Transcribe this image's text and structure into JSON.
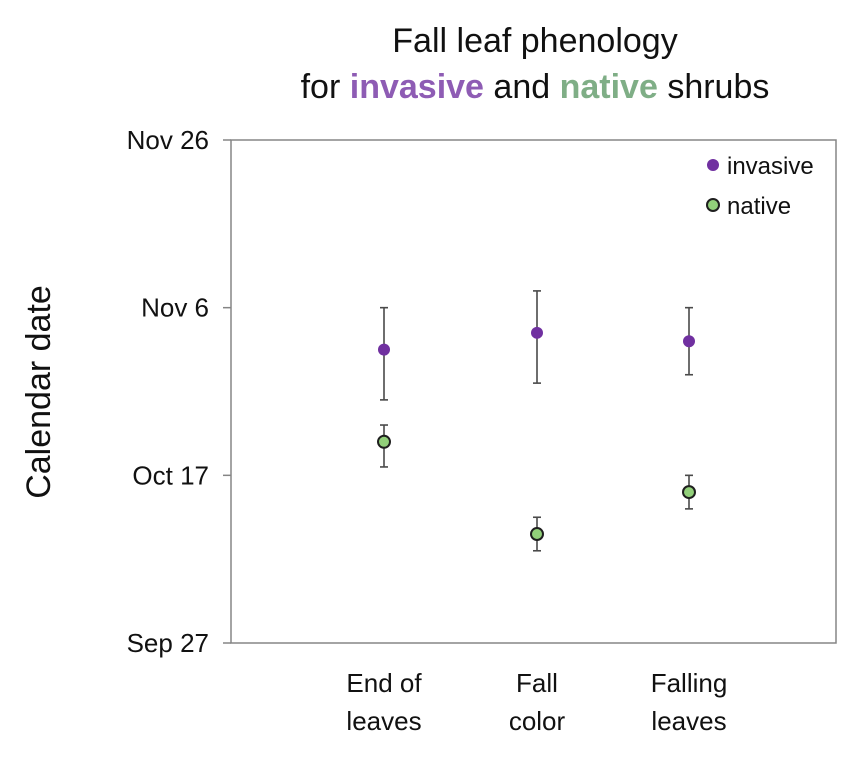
{
  "chart_data": {
    "type": "scatter",
    "title_line1": "Fall leaf phenology",
    "title_line2": {
      "prefix": "for",
      "invasive_word": "invasive",
      "middle": "and",
      "native_word": "native",
      "suffix": "shrubs"
    },
    "ylabel": "Calendar date",
    "xlabel": "",
    "y_ticks": [
      {
        "label": "Nov 26",
        "value": "2000-11-26"
      },
      {
        "label": "Nov 6",
        "value": "2000-11-06"
      },
      {
        "label": "Oct 17",
        "value": "2000-10-17"
      },
      {
        "label": "Sep 27",
        "value": "2000-09-27"
      }
    ],
    "ylim": [
      "2000-09-27",
      "2000-11-26"
    ],
    "categories": [
      [
        "End of",
        "leaves"
      ],
      [
        "Fall",
        "color"
      ],
      [
        "Falling",
        "leaves"
      ]
    ],
    "series": [
      {
        "name": "invasive",
        "color": "#7030a0",
        "label_color": "#8e5cb4",
        "marker": "filled-circle",
        "values": [
          "2000-11-01",
          "2000-11-03",
          "2000-11-02"
        ],
        "error_low": [
          "2000-10-26",
          "2000-10-28",
          "2000-10-29"
        ],
        "error_high": [
          "2000-11-06",
          "2000-11-08",
          "2000-11-06"
        ]
      },
      {
        "name": "native",
        "color": "#92d07a",
        "label_color": "#7fae86",
        "marker": "outlined-circle",
        "values": [
          "2000-10-21",
          "2000-10-10",
          "2000-10-15"
        ],
        "error_low": [
          "2000-10-18",
          "2000-10-08",
          "2000-10-13"
        ],
        "error_high": [
          "2000-10-23",
          "2000-10-12",
          "2000-10-17"
        ]
      }
    ],
    "legend_position": "top-right",
    "grid": false
  }
}
